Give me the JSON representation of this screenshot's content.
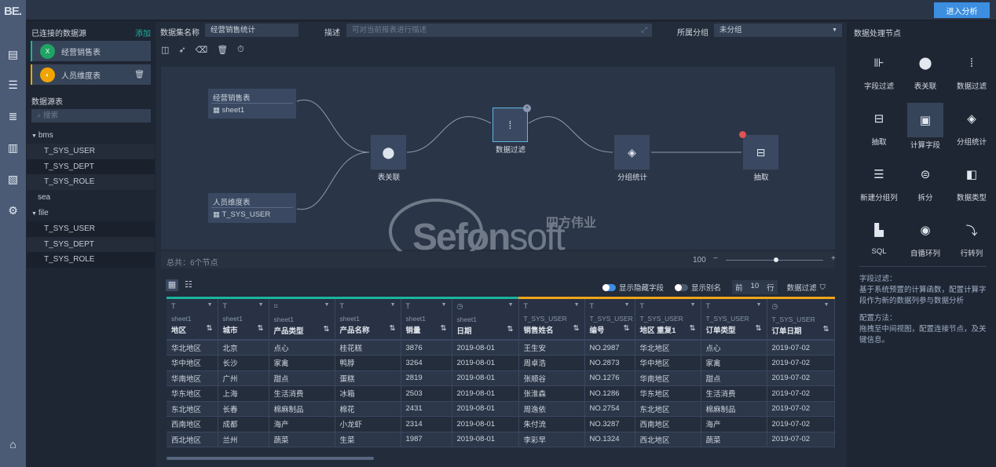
{
  "app": {
    "logo": "BE.",
    "enter_button": "进入分析",
    "accent": "#3c8ee0"
  },
  "rail": [
    "table-icon",
    "report-icon",
    "database-icon",
    "dashboard-icon",
    "file-settings-icon",
    "gear-icon",
    "home-icon"
  ],
  "left": {
    "connected_title": "已连接的数据源",
    "add": "添加",
    "sources": [
      {
        "name": "经营销售表",
        "icon": "excel-icon",
        "color": "#1fa463",
        "bar": "#1bb394"
      },
      {
        "name": "人员维度表",
        "icon": "mysql-icon",
        "color": "#f0a400",
        "bar": "#f0a400"
      }
    ],
    "tables_title": "数据源表",
    "search_placeholder": "搜索",
    "tree": [
      {
        "label": "bms",
        "level": 0,
        "expanded": true
      },
      {
        "label": "T_SYS_USER",
        "level": 1
      },
      {
        "label": "T_SYS_DEPT",
        "level": 1
      },
      {
        "label": "T_SYS_ROLE",
        "level": 1
      },
      {
        "label": "sea",
        "level": 0
      },
      {
        "label": "file",
        "level": 0,
        "expanded": true
      },
      {
        "label": "T_SYS_USER",
        "level": 1
      },
      {
        "label": "T_SYS_DEPT",
        "level": 1
      },
      {
        "label": "T_SYS_ROLE",
        "level": 1
      }
    ]
  },
  "header": {
    "name_label": "数据集名称",
    "name_value": "经营销售统计",
    "desc_label": "描述",
    "desc_placeholder": "可对当前报表进行描述",
    "group_label": "所属分组",
    "group_value": "未分组"
  },
  "flow": {
    "sources": [
      {
        "title": "经营销售表",
        "table": "sheet1"
      },
      {
        "title": "人员维度表",
        "table": "T_SYS_USER"
      }
    ],
    "nodes": [
      "表关联",
      "数据过滤",
      "分组统计",
      "抽取"
    ],
    "footer": "总共：6个节点",
    "zoom": "100",
    "watermark": "Sefonsoft",
    "watermark_cn": "四方伟业"
  },
  "table": {
    "show_hidden": "显示隐藏字段",
    "show_alias": "显示别名",
    "top_label": "前",
    "top_value": "10",
    "top_unit": "行",
    "filter": "数据过滤",
    "columns": [
      {
        "src": "sheet1",
        "name": "地区"
      },
      {
        "src": "sheet1",
        "name": "城市"
      },
      {
        "src": "sheet1",
        "name": "产品类型"
      },
      {
        "src": "sheet1",
        "name": "产品名称"
      },
      {
        "src": "sheet1",
        "name": "销量"
      },
      {
        "src": "sheet1",
        "name": "日期"
      },
      {
        "src": "T_SYS_USER",
        "name": "销售姓名"
      },
      {
        "src": "T_SYS_USER",
        "name": "编号"
      },
      {
        "src": "T_SYS_USER",
        "name": "地区 重复1"
      },
      {
        "src": "T_SYS_USER",
        "name": "订单类型"
      },
      {
        "src": "T_SYS_USER",
        "name": "订单日期"
      }
    ],
    "rows": [
      [
        "华北地区",
        "北京",
        "点心",
        "桂花糕",
        "3876",
        "2019-08-01",
        "王生安",
        "NO.2987",
        "华北地区",
        "点心",
        "2019-07-02"
      ],
      [
        "华中地区",
        "长沙",
        "家禽",
        "鸭脖",
        "3264",
        "2019-08-01",
        "周卓浩",
        "NO.2873",
        "华中地区",
        "家禽",
        "2019-07-02"
      ],
      [
        "华南地区",
        "广州",
        "甜点",
        "蛋糕",
        "2819",
        "2019-08-01",
        "张顺谷",
        "NO.1276",
        "华南地区",
        "甜点",
        "2019-07-02"
      ],
      [
        "华东地区",
        "上海",
        "生活消费",
        "冰箱",
        "2503",
        "2019-08-01",
        "张淮森",
        "NO.1286",
        "华东地区",
        "生活消费",
        "2019-07-02"
      ],
      [
        "东北地区",
        "长春",
        "棉麻制品",
        "棉花",
        "2431",
        "2019-08-01",
        "周逸依",
        "NO.2754",
        "东北地区",
        "棉麻制品",
        "2019-07-02"
      ],
      [
        "西南地区",
        "成都",
        "海产",
        "小龙虾",
        "2314",
        "2019-08-01",
        "朱付流",
        "NO.3287",
        "西南地区",
        "海产",
        "2019-07-02"
      ],
      [
        "西北地区",
        "兰州",
        "蔬菜",
        "生菜",
        "1987",
        "2019-08-01",
        "李彩早",
        "NO.1324",
        "西北地区",
        "蔬菜",
        "2019-07-02"
      ]
    ]
  },
  "right": {
    "title": "数据处理节点",
    "tools": [
      {
        "label": "字段过滤",
        "icon": "field-filter-icon"
      },
      {
        "label": "表关联",
        "icon": "join-icon"
      },
      {
        "label": "数据过滤",
        "icon": "data-filter-icon"
      },
      {
        "label": "抽取",
        "icon": "extract-icon"
      },
      {
        "label": "计算字段",
        "icon": "calc-field-icon",
        "selected": true
      },
      {
        "label": "分组统计",
        "icon": "group-stats-icon"
      },
      {
        "label": "新建分组列",
        "icon": "new-group-column-icon"
      },
      {
        "label": "拆分",
        "icon": "split-icon"
      },
      {
        "label": "数据类型",
        "icon": "data-type-icon"
      },
      {
        "label": "SQL",
        "icon": "sql-icon"
      },
      {
        "label": "自循环列",
        "icon": "self-loop-icon"
      },
      {
        "label": "行转列",
        "icon": "row-to-column-icon"
      }
    ],
    "help_title1": "字段过滤：",
    "help_text1": "基于系统预置的计算函数，配置计算字段作为新的数据列参与数据分析",
    "help_title2": "配置方法：",
    "help_text2": "拖拽至中间视图，配置连接节点，及关键信息。"
  }
}
